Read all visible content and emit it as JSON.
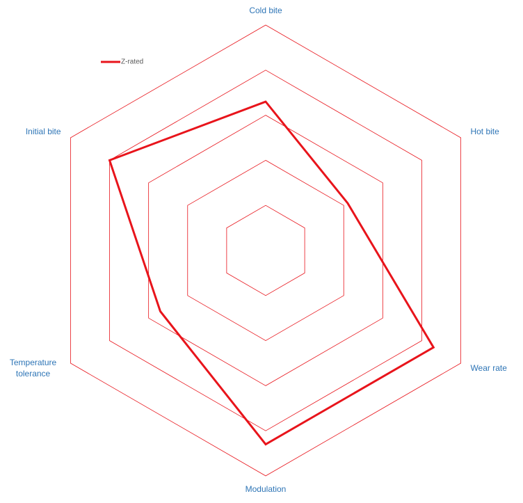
{
  "chart_data": {
    "type": "radar",
    "categories": [
      "Cold bite",
      "Hot bite",
      "Wear rate",
      "Modulation",
      "Temperature tolerance",
      "Initial bite"
    ],
    "series": [
      {
        "name": "Z-rated",
        "color": "#e8141b",
        "values": [
          3.3,
          2.1,
          4.3,
          4.3,
          2.7,
          4.0
        ]
      }
    ],
    "ylim": [
      0,
      5
    ],
    "yticks": [
      1,
      2,
      3,
      4,
      5
    ],
    "grid": true,
    "grid_color": "#e8141b",
    "label_color": "#2e75b6",
    "legend": "upper left"
  }
}
